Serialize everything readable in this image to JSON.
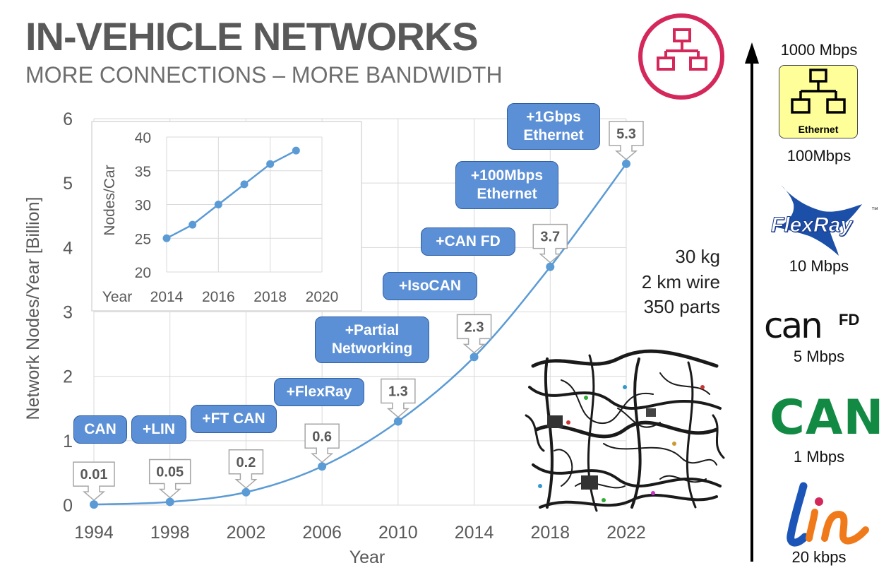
{
  "header": {
    "title": "IN-VEHICLE NETWORKS",
    "subtitle": "MORE CONNECTIONS – MORE BANDWIDTH"
  },
  "colors": {
    "accent_pink": "#d4275a",
    "series_blue": "#5b8fd6",
    "box_border": "#2f5ea3",
    "ethernet_box_bg": "#ffff99",
    "can_green": "#128a44",
    "lin_blue": "#1c55b8",
    "lin_orange": "#f07a1a"
  },
  "chart_data": [
    {
      "type": "line",
      "xlabel": "Year",
      "ylabel": "Network Nodes/Year [Billion]",
      "xlim": [
        1994,
        2022
      ],
      "ylim": [
        0,
        6
      ],
      "x_ticks": [
        "1994",
        "1998",
        "2002",
        "2006",
        "2010",
        "2014",
        "2018",
        "2022"
      ],
      "y_ticks": [
        "0",
        "1",
        "2",
        "3",
        "4",
        "5",
        "6"
      ],
      "grid": true,
      "points": [
        {
          "x": 1994,
          "y": 0.01,
          "label": "0.01"
        },
        {
          "x": 1998,
          "y": 0.05,
          "label": "0.05"
        },
        {
          "x": 2002,
          "y": 0.2,
          "label": "0.2"
        },
        {
          "x": 2006,
          "y": 0.6,
          "label": "0.6"
        },
        {
          "x": 2010,
          "y": 1.3,
          "label": "1.3"
        },
        {
          "x": 2014,
          "y": 2.3,
          "label": "2.3"
        },
        {
          "x": 2018,
          "y": 3.7,
          "label": "3.7"
        },
        {
          "x": 2022,
          "y": 5.3,
          "label": "5.3"
        }
      ],
      "annotations": [
        "CAN",
        "+LIN",
        "+FT CAN",
        "+FlexRay",
        "+Partial Networking",
        "+IsoCAN",
        "+CAN FD",
        "+100Mbps Ethernet",
        "+1Gbps Ethernet"
      ]
    },
    {
      "type": "line",
      "xlabel": "Year",
      "ylabel": "Nodes/Car",
      "xlim": [
        2014,
        2020
      ],
      "ylim": [
        20,
        40
      ],
      "x_ticks": [
        "2014",
        "2016",
        "2018",
        "2020"
      ],
      "y_ticks": [
        "20",
        "25",
        "30",
        "35",
        "40"
      ],
      "grid": true,
      "x": [
        2014,
        2015,
        2016,
        2017,
        2018,
        2019
      ],
      "y": [
        25,
        27,
        30,
        33,
        36,
        38
      ]
    }
  ],
  "annotation_boxes": [
    {
      "line1": "CAN",
      "line2": ""
    },
    {
      "line1": "+LIN",
      "line2": ""
    },
    {
      "line1": "+FT CAN",
      "line2": ""
    },
    {
      "line1": "+FlexRay",
      "line2": ""
    },
    {
      "line1": "+Partial",
      "line2": "Networking"
    },
    {
      "line1": "+IsoCAN",
      "line2": ""
    },
    {
      "line1": "+CAN FD",
      "line2": ""
    },
    {
      "line1": "+100Mbps",
      "line2": "Ethernet"
    },
    {
      "line1": "+1Gbps",
      "line2": "Ethernet"
    }
  ],
  "stats": {
    "weight": "30 kg",
    "wire": "2 km wire",
    "parts": "350 parts"
  },
  "bandwidth_scale": {
    "top": "1000 Mbps",
    "ethernet_logo_text": "Ethernet",
    "ethernet": "100Mbps",
    "flexray_logo_text": "FlexRay",
    "flexray_tm": "™",
    "flexray": "10 Mbps",
    "canfd_logo_text": "can",
    "canfd_logo_sup": "FD",
    "canfd": "5 Mbps",
    "can_logo_text": "CAN",
    "can": "1 Mbps",
    "lin_logo_text": "lin",
    "lin": "20 kbps"
  },
  "icons": [
    "network-icon",
    "wiring-harness-image",
    "ethernet-logo",
    "flexray-logo",
    "canfd-logo",
    "can-logo",
    "lin-logo"
  ]
}
